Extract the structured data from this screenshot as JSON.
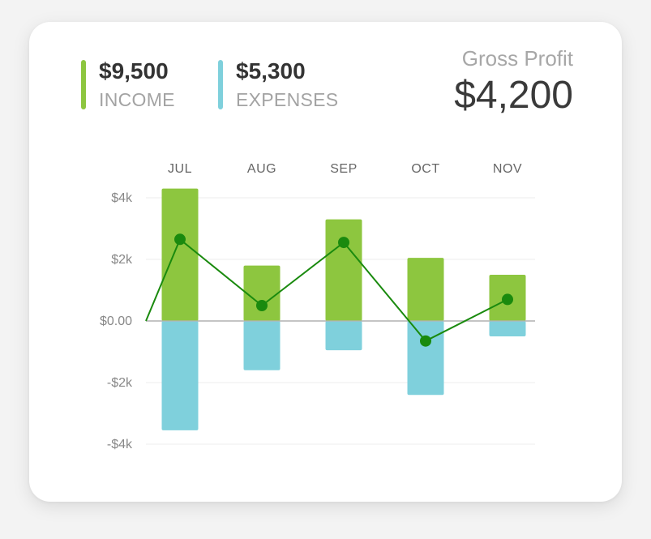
{
  "summary": {
    "income": {
      "amount": "$9,500",
      "label": "INCOME",
      "color": "#8dc63f"
    },
    "expenses": {
      "amount": "$5,300",
      "label": "EXPENSES",
      "color": "#7fd0dc"
    },
    "gross_profit": {
      "label": "Gross Profit",
      "amount": "$4,200"
    }
  },
  "chart_data": {
    "type": "bar",
    "categories": [
      "JUL",
      "AUG",
      "SEP",
      "OCT",
      "NOV"
    ],
    "series": [
      {
        "values": [
          4300,
          1800,
          3300,
          2050,
          1500
        ],
        "color": "#8dc63f"
      },
      {
        "values": [
          -3550,
          -1600,
          -950,
          -2400,
          -500
        ],
        "color": "#7fd0dc"
      },
      {
        "type": "line",
        "values": [
          2650,
          500,
          2550,
          -650,
          700
        ],
        "color": "#1a8a0e",
        "start": 0
      }
    ],
    "y_ticks": [
      {
        "value": 4000,
        "label": "$4k"
      },
      {
        "value": 2000,
        "label": "$2k"
      },
      {
        "value": 0,
        "label": "$0.00"
      },
      {
        "value": -2000,
        "label": "-$2k"
      },
      {
        "value": -4000,
        "label": "-$4k"
      }
    ],
    "ylim": [
      -4000,
      4000
    ],
    "grid": true,
    "legend": "none"
  }
}
